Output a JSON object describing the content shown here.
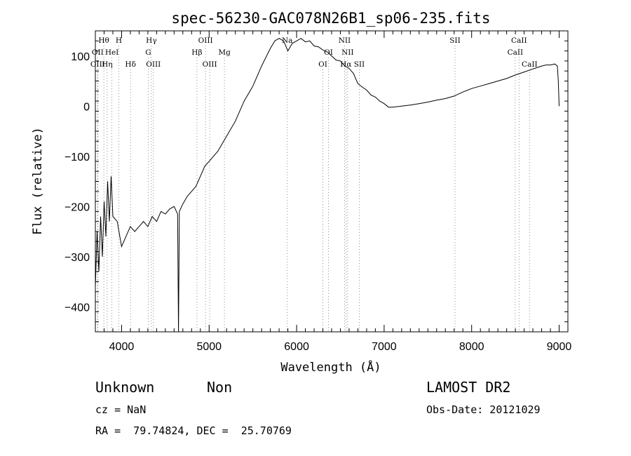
{
  "chart_data": {
    "type": "line",
    "title": "spec-56230-GAC078N26B1_sp06-235.fits",
    "xlabel": "Wavelength (Å)",
    "ylabel": "Flux (relative)",
    "xlim": [
      3700,
      9100
    ],
    "ylim": [
      -450,
      150
    ],
    "x_ticks": [
      4000,
      5000,
      6000,
      7000,
      8000,
      9000
    ],
    "y_ticks": [
      100,
      0,
      -100,
      -200,
      -300,
      -400
    ],
    "x_tick_labels": [
      "4000",
      "5000",
      "6000",
      "7000",
      "8000",
      "9000"
    ],
    "y_tick_labels": [
      "100",
      "0",
      "−100",
      "−200",
      "−300",
      "−400"
    ],
    "series": [
      {
        "x": [
          3700,
          3720,
          3740,
          3760,
          3780,
          3800,
          3820,
          3840,
          3860,
          3880,
          3900,
          3950,
          4000,
          4050,
          4100,
          4150,
          4200,
          4250,
          4300,
          4350,
          4400,
          4450,
          4500,
          4550,
          4600,
          4640,
          4650,
          4660,
          4700,
          4750,
          4800,
          4850,
          4900,
          4950,
          5000,
          5100,
          5200,
          5300,
          5400,
          5500,
          5600,
          5700,
          5750,
          5800,
          5850,
          5900,
          5950,
          6000,
          6050,
          6100,
          6150,
          6200,
          6250,
          6300,
          6350,
          6400,
          6450,
          6500,
          6550,
          6600,
          6650,
          6700,
          6750,
          6800,
          6850,
          6900,
          6950,
          7000,
          7050,
          7100,
          7150,
          7200,
          7300,
          7400,
          7500,
          7600,
          7700,
          7800,
          7900,
          8000,
          8100,
          8200,
          8300,
          8400,
          8500,
          8600,
          8700,
          8800,
          8850,
          8900,
          8950,
          8980,
          8990,
          9000
        ],
        "y": [
          -360,
          -250,
          -330,
          -220,
          -300,
          -190,
          -260,
          -150,
          -230,
          -140,
          -220,
          -230,
          -280,
          -260,
          -240,
          -250,
          -240,
          -230,
          -240,
          -220,
          -230,
          -210,
          -215,
          -205,
          -200,
          -215,
          -450,
          -210,
          -195,
          -180,
          -170,
          -160,
          -140,
          -120,
          -110,
          -90,
          -60,
          -30,
          10,
          40,
          80,
          115,
          130,
          135,
          130,
          110,
          125,
          130,
          135,
          128,
          130,
          120,
          118,
          112,
          108,
          100,
          92,
          90,
          80,
          75,
          65,
          45,
          38,
          32,
          22,
          18,
          10,
          5,
          -2,
          -2,
          -1,
          0,
          2,
          5,
          8,
          12,
          15,
          20,
          28,
          35,
          40,
          45,
          50,
          55,
          62,
          68,
          74,
          80,
          82,
          82,
          84,
          80,
          50,
          0
        ]
      }
    ],
    "spectral_lines": [
      {
        "label": "Hθ",
        "x": 3797,
        "row": 1
      },
      {
        "label": "OII",
        "x": 3727,
        "row": 2
      },
      {
        "label": "OIII",
        "x": 3727,
        "row": 3
      },
      {
        "label": "Hη",
        "x": 3835,
        "row": 3
      },
      {
        "label": "H",
        "x": 3968,
        "row": 1
      },
      {
        "label": "HeI",
        "x": 3889,
        "row": 2
      },
      {
        "label": "Hδ",
        "x": 4102,
        "row": 3
      },
      {
        "label": "Hγ",
        "x": 4340,
        "row": 1
      },
      {
        "label": "G",
        "x": 4304,
        "row": 2
      },
      {
        "label": "OIII",
        "x": 4363,
        "row": 3
      },
      {
        "label": "OIII",
        "x": 4959,
        "row": 1
      },
      {
        "label": "Hβ",
        "x": 4861,
        "row": 2
      },
      {
        "label": "OIII",
        "x": 5007,
        "row": 3
      },
      {
        "label": "Mg",
        "x": 5175,
        "row": 2
      },
      {
        "label": "Na",
        "x": 5893,
        "row": 1
      },
      {
        "label": "NII",
        "x": 6548,
        "row": 1
      },
      {
        "label": "OI",
        "x": 6364,
        "row": 2
      },
      {
        "label": "NII",
        "x": 6583,
        "row": 2
      },
      {
        "label": "OI",
        "x": 6300,
        "row": 3
      },
      {
        "label": "Hα",
        "x": 6563,
        "row": 3
      },
      {
        "label": "SII",
        "x": 6716,
        "row": 3
      },
      {
        "label": "SII",
        "x": 7810,
        "row": 1
      },
      {
        "label": "CaII",
        "x": 8542,
        "row": 1
      },
      {
        "label": "CaII",
        "x": 8498,
        "row": 2
      },
      {
        "label": "CaII",
        "x": 8662,
        "row": 3
      }
    ]
  },
  "info": {
    "class": "Unknown",
    "subclass": "Non",
    "survey": "LAMOST DR2",
    "cz": "cz = NaN",
    "obs_date": "Obs-Date: 20121029",
    "coords": "RA =  79.74824, DEC =  25.70769"
  }
}
